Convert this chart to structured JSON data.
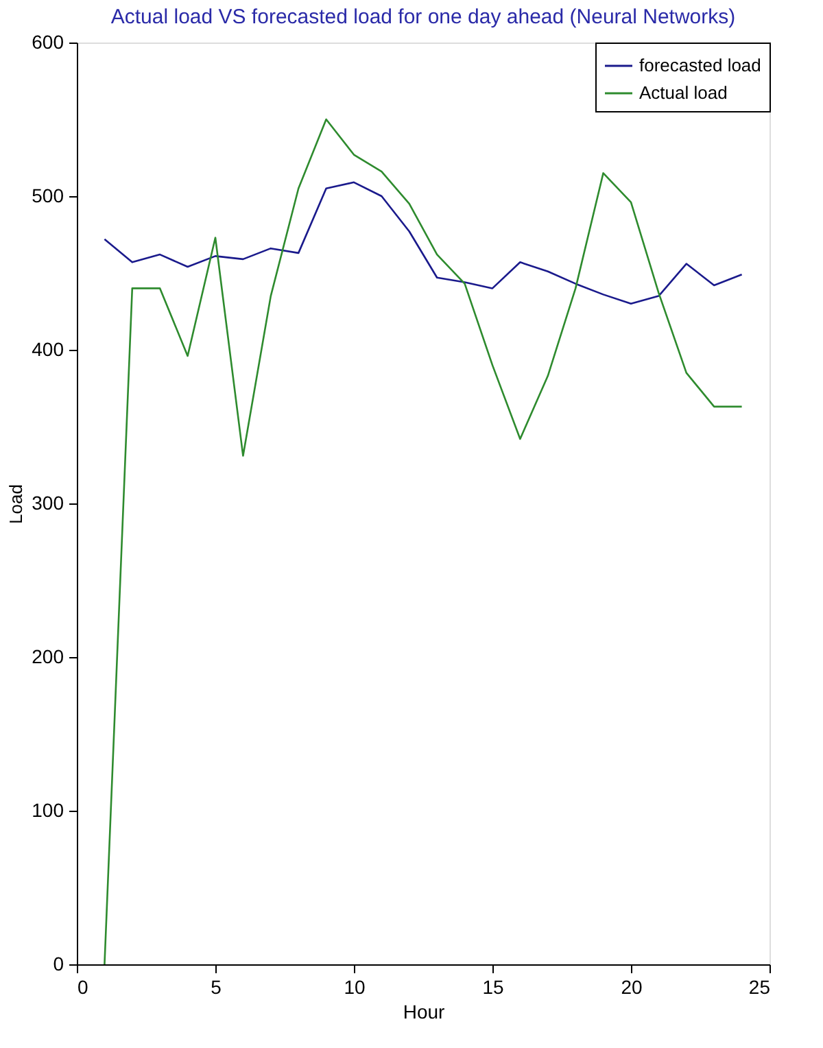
{
  "chart_data": {
    "type": "line",
    "title": "Actual load VS forecasted load for one day ahead (Neural Networks)",
    "xlabel": "Hour",
    "ylabel": "Load",
    "x": [
      1,
      2,
      3,
      4,
      5,
      6,
      7,
      8,
      9,
      10,
      11,
      12,
      13,
      14,
      15,
      16,
      17,
      18,
      19,
      20,
      21,
      22,
      23,
      24
    ],
    "series": [
      {
        "name": "forecasted load",
        "color": "#1a1a8c",
        "values": [
          472,
          457,
          462,
          454,
          461,
          459,
          466,
          463,
          505,
          509,
          500,
          477,
          447,
          444,
          440,
          457,
          451,
          443,
          436,
          430,
          435,
          456,
          442,
          449
        ]
      },
      {
        "name": "Actual load",
        "color": "#2e8b2e",
        "values": [
          0,
          440,
          440,
          396,
          473,
          331,
          435,
          505,
          550,
          527,
          516,
          495,
          462,
          443,
          390,
          342,
          383,
          440,
          515,
          496,
          437,
          385,
          363,
          363
        ]
      }
    ],
    "xlim": [
      0,
      25
    ],
    "xticks": [
      0,
      5,
      10,
      15,
      20,
      25
    ],
    "ylim": [
      0,
      600
    ],
    "yticks": [
      0,
      100,
      200,
      300,
      400,
      500,
      600
    ],
    "grid": false,
    "legend": "top right",
    "marker": "none",
    "line_style": "solid"
  }
}
